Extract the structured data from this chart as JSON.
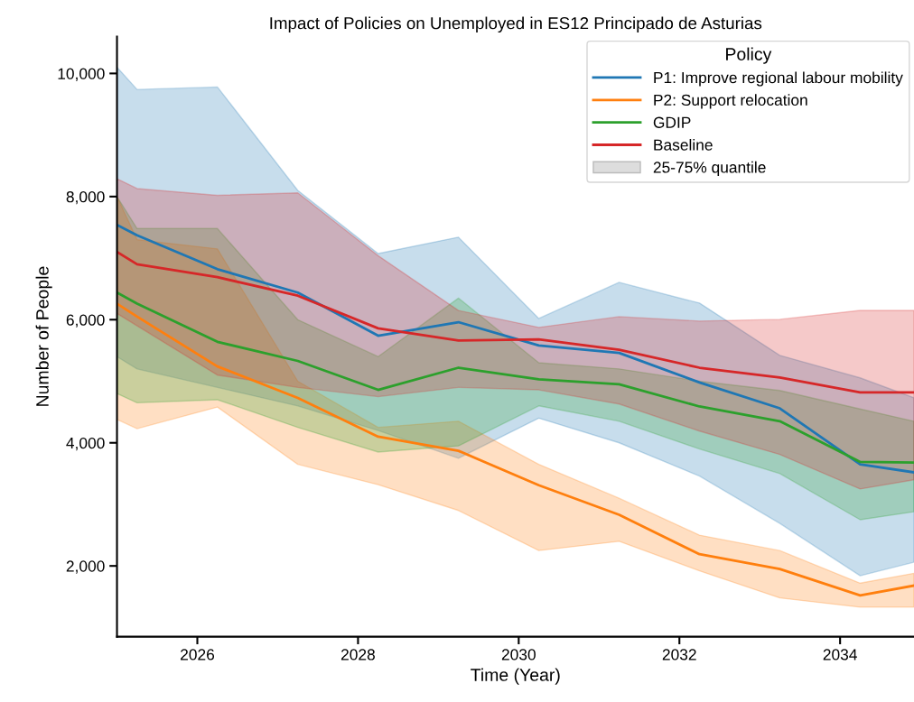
{
  "chart_data": {
    "type": "line",
    "title": "Impact of Policies on Unemployed in ES12 Principado de Asturias",
    "xlabel": "Time (Year)",
    "ylabel": "Number of People",
    "legend_title": "Policy",
    "x": [
      2025,
      2025.25,
      2026.25,
      2027.25,
      2028.25,
      2029.25,
      2030.25,
      2031.25,
      2032.25,
      2033.25,
      2034.25,
      2034.92
    ],
    "series": [
      {
        "name": "P1: Improve regional labour mobility",
        "color": "#1f77b4",
        "values": [
          7540,
          7370,
          6820,
          6440,
          5740,
          5960,
          5580,
          5460,
          4980,
          4560,
          3650,
          3520
        ],
        "lower": [
          5400,
          5200,
          4900,
          4600,
          4200,
          3750,
          4400,
          4000,
          3460,
          2690,
          1840,
          2060
        ],
        "upper": [
          10100,
          9740,
          9780,
          8100,
          7075,
          7340,
          6020,
          6606,
          6270,
          5420,
          5055,
          4733
        ]
      },
      {
        "name": "P2: Support relocation",
        "color": "#ff7f0e",
        "values": [
          6260,
          6050,
          5240,
          4730,
          4100,
          3870,
          3310,
          2830,
          2190,
          1950,
          1520,
          1680
        ],
        "lower": [
          4380,
          4230,
          4580,
          3650,
          3320,
          2900,
          2250,
          2400,
          1920,
          1480,
          1330,
          1330
        ],
        "upper": [
          8000,
          7300,
          7150,
          5000,
          4250,
          4350,
          3650,
          3100,
          2500,
          2250,
          1720,
          1880
        ]
      },
      {
        "name": "GDIP",
        "color": "#2ca02c",
        "values": [
          6440,
          6260,
          5640,
          5330,
          4860,
          5220,
          5030,
          4950,
          4590,
          4350,
          3690,
          3680
        ],
        "lower": [
          4800,
          4650,
          4700,
          4250,
          3850,
          3950,
          4600,
          4350,
          3900,
          3500,
          2750,
          2880
        ],
        "upper": [
          8000,
          7480,
          7480,
          6000,
          5400,
          6350,
          5300,
          5200,
          5000,
          4850,
          4550,
          4350
        ]
      },
      {
        "name": "Baseline",
        "color": "#d62728",
        "values": [
          7100,
          6900,
          6690,
          6390,
          5860,
          5660,
          5680,
          5510,
          5220,
          5060,
          4820,
          4820
        ],
        "lower": [
          6100,
          5900,
          5100,
          4900,
          4750,
          4900,
          4860,
          4630,
          4190,
          3810,
          3250,
          3400
        ],
        "upper": [
          8290,
          8130,
          8020,
          8060,
          7040,
          6150,
          5875,
          6050,
          5977,
          6006,
          6150,
          6150
        ]
      }
    ],
    "annotations": [
      "25-75% quantile"
    ],
    "xlim": [
      2025,
      2034.92
    ],
    "xticks": [
      2026,
      2028,
      2030,
      2032,
      2034
    ],
    "ylim": [
      850,
      10600
    ],
    "yticks": [
      {
        "value": 2000,
        "label": "2,000"
      },
      {
        "value": 4000,
        "label": "4,000"
      },
      {
        "value": 6000,
        "label": "6,000"
      },
      {
        "value": 8000,
        "label": "8,000"
      },
      {
        "value": 10000,
        "label": "10,000"
      }
    ],
    "grid": false,
    "legend": "top right",
    "line_style": "solid",
    "marker": "none"
  }
}
